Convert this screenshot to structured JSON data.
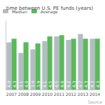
{
  "chart_data": {
    "type": "bar",
    "title": "time between U.S. PE funds (years)",
    "categories": [
      "2007",
      "2008",
      "2009",
      "2010",
      "2011",
      "2012",
      "2013",
      "2014"
    ],
    "series": [
      {
        "name": "Median",
        "color": "#b3bcc4",
        "values": [
          4.0,
          3.1,
          3.4,
          4.1,
          4.5,
          4.2,
          4.7,
          4.3
        ],
        "value_labels": [
          "4.0",
          "3.1",
          "3.4",
          "4.1",
          "4.5",
          "4.2",
          "4.7",
          "4.3"
        ]
      },
      {
        "name": "Average",
        "color": "#5cb85c",
        "values": [
          4.3,
          4.0,
          3.9,
          4.5,
          4.6,
          4.3,
          4.3,
          4.3
        ],
        "value_labels": [
          "4.3",
          "4.0",
          "3.9",
          "4.5",
          "4.6",
          "4.3",
          "4.3",
          "4.3"
        ]
      }
    ],
    "ylim": [
      0,
      5.8
    ],
    "grid": false,
    "legend": "upper left",
    "data_labels": true,
    "tick_labels": "x",
    "annotations": [
      "Source"
    ]
  }
}
